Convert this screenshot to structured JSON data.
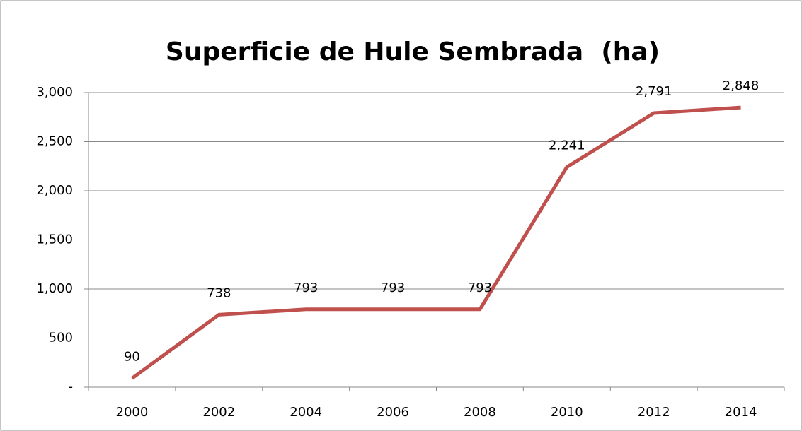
{
  "chart_data": {
    "type": "line",
    "title": "Superficie de Hule Sembrada  (ha)",
    "categories": [
      "2000",
      "2002",
      "2004",
      "2006",
      "2008",
      "2010",
      "2012",
      "2014"
    ],
    "series": [
      {
        "name": "Superficie",
        "color": "#c0504d",
        "values": [
          90,
          738,
          793,
          793,
          793,
          2241,
          2791,
          2848
        ],
        "value_labels": [
          "90",
          "738",
          "793",
          "793",
          "793",
          "2,241",
          "2,791",
          "2,848"
        ]
      }
    ],
    "ylim": [
      0,
      3000
    ],
    "yticks": [
      {
        "value": 0,
        "label": "-"
      },
      500,
      {
        "value": 1000,
        "label": "1,000"
      },
      {
        "value": 1500,
        "label": "1,500"
      },
      {
        "value": 2000,
        "label": "2,000"
      },
      {
        "value": 2500,
        "label": "2,500"
      },
      {
        "value": 3000,
        "label": "3,000"
      }
    ],
    "grid": true
  }
}
